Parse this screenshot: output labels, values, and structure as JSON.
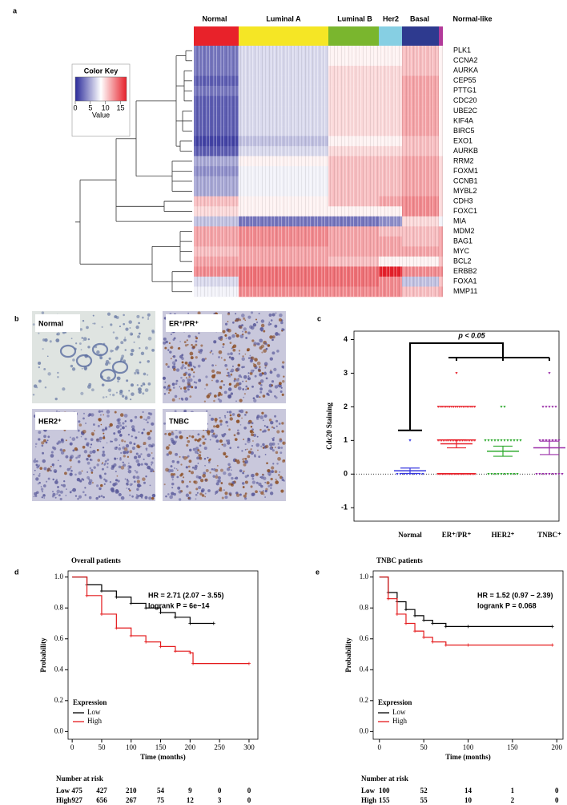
{
  "panel_labels": [
    "a",
    "b",
    "c",
    "d",
    "e"
  ],
  "heatmap": {
    "subtypes": [
      "Normal",
      "Luminal A",
      "Luminal B",
      "Her2",
      "Basal",
      "Normal-like"
    ],
    "subtype_colors": [
      "#e8222a",
      "#f5e625",
      "#7ab62e",
      "#86cfe3",
      "#2e3a8f",
      "#b23a9a"
    ],
    "genes": [
      "PLK1",
      "CCNA2",
      "AURKA",
      "CEP55",
      "PTTG1",
      "CDC20",
      "UBE2C",
      "KIF4A",
      "BIRC5",
      "EXO1",
      "AURKB",
      "RRM2",
      "FOXM1",
      "CCNB1",
      "MYBL2",
      "CDH3",
      "FOXC1",
      "MIA",
      "MDM2",
      "BAG1",
      "MYC",
      "BCL2",
      "ERBB2",
      "FOXA1",
      "MMP11"
    ],
    "values": [
      [
        3,
        7,
        9,
        9,
        11,
        9
      ],
      [
        3,
        7,
        9,
        9,
        11,
        9
      ],
      [
        3,
        7,
        10,
        10,
        11,
        9
      ],
      [
        2,
        7,
        10,
        10,
        12,
        9
      ],
      [
        3,
        7,
        10,
        10,
        12,
        9
      ],
      [
        2,
        7,
        10,
        10,
        12,
        9
      ],
      [
        2,
        7,
        10,
        10,
        12,
        9
      ],
      [
        2,
        7,
        10,
        10,
        12,
        9
      ],
      [
        2,
        7,
        10,
        10,
        12,
        9
      ],
      [
        1,
        6,
        9,
        9,
        11,
        9
      ],
      [
        2,
        7,
        10,
        10,
        11,
        9
      ],
      [
        5,
        9,
        11,
        11,
        12,
        10
      ],
      [
        4,
        8,
        11,
        11,
        12,
        10
      ],
      [
        5,
        8,
        11,
        11,
        12,
        10
      ],
      [
        5,
        8,
        11,
        11,
        12,
        10
      ],
      [
        11,
        9,
        11,
        12,
        13,
        10
      ],
      [
        10,
        9,
        9,
        9,
        13,
        10
      ],
      [
        6,
        3,
        3,
        4,
        10,
        8
      ],
      [
        12,
        13,
        12,
        11,
        11,
        12
      ],
      [
        12,
        13,
        12,
        12,
        11,
        12
      ],
      [
        11,
        12,
        12,
        12,
        12,
        12
      ],
      [
        12,
        12,
        11,
        9,
        9,
        11
      ],
      [
        13,
        14,
        14,
        17,
        13,
        13
      ],
      [
        7,
        14,
        14,
        13,
        6,
        11
      ],
      [
        8,
        13,
        13,
        13,
        11,
        12
      ]
    ],
    "color_key": {
      "title": "Color Key",
      "xlabel": "Value",
      "lim": [
        0,
        17
      ],
      "ticks": [
        0,
        5,
        10,
        15
      ],
      "colors": [
        "#2a2a9a",
        "#ffffff",
        "#e6202a"
      ]
    }
  },
  "histology": {
    "images": [
      "Normal",
      "ER⁺/PR⁺",
      "HER2⁺",
      "TNBC"
    ]
  },
  "chart_data": [
    {
      "type": "dotplot",
      "ylabel": "Cdc20 Staining",
      "annotation": "p < 0.05",
      "categories": [
        "Normal",
        "ER⁺/PR⁺",
        "HER2⁺",
        "TNBC⁺"
      ],
      "colors": [
        "#3a3adf",
        "#e8202a",
        "#2eaa2e",
        "#9a2ea8"
      ],
      "levels": [
        0,
        1,
        2,
        3
      ],
      "counts": [
        [
          9,
          1,
          0,
          0
        ],
        [
          26,
          22,
          20,
          1
        ],
        [
          10,
          12,
          2,
          0
        ],
        [
          9,
          7,
          5,
          1
        ]
      ],
      "means": [
        0.1,
        0.9,
        0.68,
        0.78
      ],
      "sems": [
        0.08,
        0.12,
        0.15,
        0.2
      ],
      "ylim": [
        -1.4,
        4.25
      ],
      "yticks": [
        -1,
        0,
        1,
        2,
        3,
        4
      ]
    },
    {
      "type": "survival",
      "title": "Overall patients",
      "annotations": [
        "HR = 2.71 (2.07 − 3.55)",
        "logrank P = 6e−14"
      ],
      "xlabel": "Time (months)",
      "ylabel": "Probability",
      "legend_title": "Expression",
      "series": [
        {
          "name": "Low",
          "color": "#000000",
          "x": [
            0,
            25,
            50,
            75,
            100,
            125,
            150,
            175,
            200,
            240
          ],
          "y": [
            1,
            0.95,
            0.91,
            0.87,
            0.83,
            0.8,
            0.77,
            0.74,
            0.7,
            0.7
          ]
        },
        {
          "name": "High",
          "color": "#e41a1c",
          "x": [
            0,
            25,
            50,
            75,
            100,
            125,
            150,
            175,
            200,
            205,
            300
          ],
          "y": [
            1,
            0.88,
            0.76,
            0.67,
            0.62,
            0.58,
            0.55,
            0.52,
            0.51,
            0.44,
            0.44
          ]
        }
      ],
      "xlim": [
        -7,
        315
      ],
      "xticks": [
        0,
        50,
        100,
        150,
        200,
        250,
        300
      ],
      "ylim": [
        -0.05,
        1.04
      ],
      "yticks": [
        {
          "value": 0,
          "label": "0.0"
        },
        0.2,
        0.4,
        0.6,
        0.8,
        {
          "value": 1,
          "label": "1.0"
        }
      ],
      "risk_table": {
        "title": "Number at risk",
        "rows": [
          [
            475,
            427,
            210,
            54,
            9,
            0,
            0
          ],
          [
            927,
            656,
            267,
            75,
            12,
            3,
            0
          ]
        ]
      }
    },
    {
      "type": "survival",
      "title": "TNBC patients",
      "annotations": [
        "HR = 1.52 (0.97 − 2.39)",
        "logrank P = 0.068"
      ],
      "xlabel": "Time (months)",
      "ylabel": "Probability",
      "legend_title": "Expression",
      "series": [
        {
          "name": "Low",
          "color": "#000000",
          "x": [
            0,
            10,
            20,
            30,
            40,
            50,
            60,
            75,
            100,
            195
          ],
          "y": [
            1,
            0.9,
            0.84,
            0.79,
            0.75,
            0.72,
            0.7,
            0.68,
            0.68,
            0.68
          ]
        },
        {
          "name": "High",
          "color": "#e41a1c",
          "x": [
            0,
            10,
            20,
            30,
            40,
            50,
            60,
            75,
            100,
            195
          ],
          "y": [
            1,
            0.86,
            0.76,
            0.7,
            0.65,
            0.61,
            0.58,
            0.56,
            0.56,
            0.56
          ]
        }
      ],
      "xlim": [
        -7,
        207
      ],
      "xticks": [
        0,
        50,
        100,
        150,
        200
      ],
      "ylim": [
        -0.05,
        1.04
      ],
      "yticks": [
        {
          "value": 0,
          "label": "0.0"
        },
        0.2,
        0.4,
        0.6,
        0.8,
        {
          "value": 1,
          "label": "1.0"
        }
      ],
      "risk_table": {
        "title": "Number at risk",
        "rows": [
          [
            100,
            52,
            14,
            1,
            0
          ],
          [
            155,
            55,
            10,
            2,
            0
          ]
        ]
      }
    }
  ]
}
